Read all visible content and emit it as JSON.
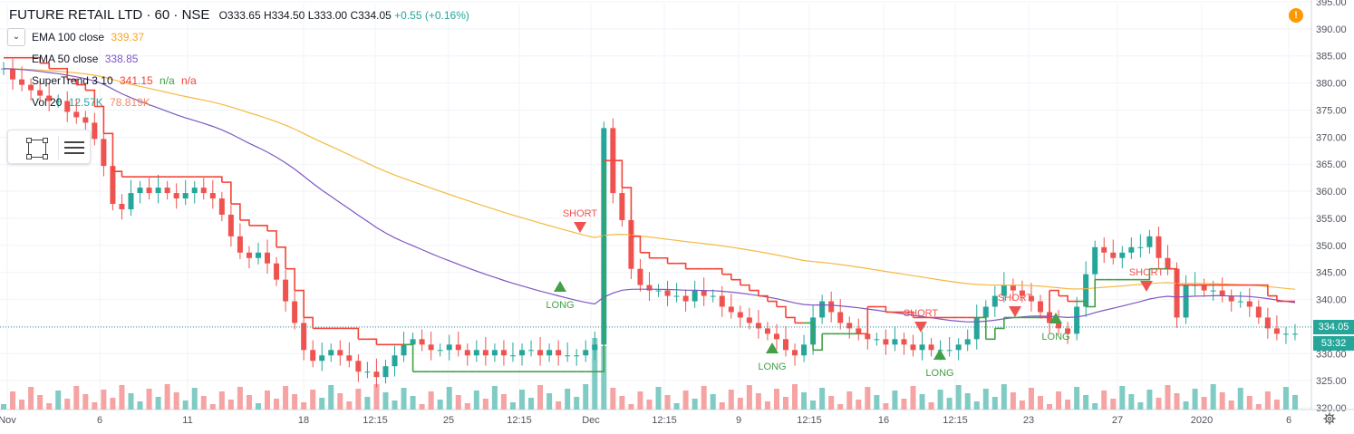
{
  "header": {
    "symbol": "FUTURE RETAIL LTD · 60 · NSE",
    "open": "O333.65",
    "high": "H334.50",
    "low": "L333.00",
    "close": "C334.05",
    "change": "+0.55 (+0.16%)"
  },
  "indicators": [
    {
      "label": "EMA 100 close",
      "value": "339.37",
      "color": "#f5a623"
    },
    {
      "label": "EMA 50 close",
      "value": "338.85",
      "color": "#7e57c2"
    },
    {
      "label": "SuperTrend 3 10",
      "value": "341.15",
      "extra": "n/a",
      "extra2": "n/a",
      "color": "#f44336",
      "extra_color": "#43a047"
    },
    {
      "label": "Vol 20",
      "value": "12.57K",
      "value2": "78.819K",
      "color": "#26a69a",
      "color2": "#ef8a65"
    }
  ],
  "alert_icon": "!",
  "price_tags": {
    "last": "334.05",
    "countdown": "53:32",
    "last_color": "#26a69a",
    "countdown_color": "#26a69a"
  },
  "colors": {
    "up": "#26a69a",
    "down": "#ef5350",
    "ema100": "#f5b942",
    "ema50": "#7e57c2",
    "st_up": "#43a047",
    "st_down": "#f44336",
    "vol_up": "#80cbc4",
    "vol_down": "#f5a3a3"
  },
  "chart_data": {
    "type": "candlestick",
    "title": "FUTURE RETAIL LTD · 60 · NSE",
    "ylim": [
      320,
      395
    ],
    "y_ticks": [
      "320.00",
      "325.00",
      "330.00",
      "335.00",
      "340.00",
      "345.00",
      "350.00",
      "355.00",
      "360.00",
      "365.00",
      "370.00",
      "375.00",
      "380.00",
      "385.00",
      "390.00",
      "395.00"
    ],
    "x_tick_labels": [
      "Nov",
      "6",
      "11",
      "18",
      "12:15",
      "25",
      "12:15",
      "Dec",
      "12:15",
      "9",
      "12:15",
      "16",
      "12:15",
      "23",
      "27",
      "2020",
      "6"
    ],
    "signals": [
      {
        "label": "SHORT",
        "type": "short"
      },
      {
        "label": "LONG",
        "type": "long"
      },
      {
        "label": "LONG",
        "type": "long"
      },
      {
        "label": "SHORT",
        "type": "short"
      },
      {
        "label": "LONG",
        "type": "long"
      },
      {
        "label": "SHORT",
        "type": "short"
      },
      {
        "label": "LONG",
        "type": "long"
      },
      {
        "label": "SHORT",
        "type": "short"
      }
    ],
    "closes": [
      383,
      381,
      380,
      379,
      378,
      377,
      377,
      375,
      374,
      373,
      370,
      365,
      358,
      357,
      360,
      361,
      360,
      361,
      360,
      359,
      360,
      361,
      360,
      359,
      356,
      352,
      349,
      348,
      349,
      347,
      344,
      340,
      336,
      331,
      329,
      330,
      331,
      330,
      329,
      327,
      327,
      326,
      328,
      330,
      332,
      333,
      332,
      331,
      331,
      332,
      331,
      330,
      331,
      330,
      331,
      330,
      330,
      331,
      331,
      330,
      331,
      330,
      330,
      330,
      331,
      332,
      372,
      360,
      355,
      346,
      343,
      342,
      342,
      341,
      341,
      340,
      342,
      341,
      341,
      339,
      338,
      337,
      336,
      335,
      334,
      333,
      331,
      330,
      332,
      337,
      340,
      338,
      336,
      335,
      334,
      333,
      333,
      332,
      333,
      332,
      331,
      332,
      331,
      331,
      331,
      332,
      333,
      337,
      339,
      341,
      343,
      342,
      341,
      340,
      338,
      336,
      335,
      334,
      339,
      345,
      350,
      349,
      348,
      349,
      350,
      350,
      352,
      348,
      346,
      337,
      343,
      343,
      342,
      342,
      341,
      340,
      340,
      339,
      337,
      335,
      334,
      334,
      334
    ],
    "volume": []
  }
}
